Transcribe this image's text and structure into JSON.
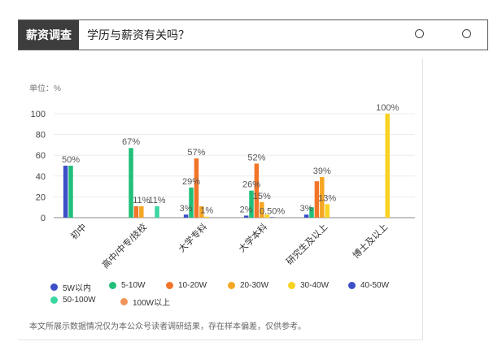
{
  "header": {
    "tag": "薪资调查",
    "title": "学历与薪资有关吗？"
  },
  "unit_label": "单位：%",
  "footnote": "本文所展示数据情况仅为本公众号读者调研结果，存在样本偏差，仅供参考。",
  "chart_data": {
    "type": "bar",
    "categories": [
      "初中",
      "高中/中专/技校",
      "大学专科",
      "大学本科",
      "研究生及以上",
      "博士及以上"
    ],
    "ylim": [
      0,
      100
    ],
    "yticks": [
      0,
      20,
      40,
      60,
      80,
      100
    ],
    "series": [
      {
        "name": "5W以内",
        "color": "#3c4fc7",
        "values": [
          50,
          0,
          3,
          2,
          3,
          0
        ]
      },
      {
        "name": "5-10W",
        "color": "#21c07a",
        "values": [
          50,
          67,
          29,
          26,
          10,
          0
        ]
      },
      {
        "name": "10-20W",
        "color": "#f07528",
        "values": [
          0,
          11,
          57,
          52,
          35,
          0
        ]
      },
      {
        "name": "20-30W",
        "color": "#f5a623",
        "values": [
          0,
          11,
          11,
          15,
          39,
          0
        ]
      },
      {
        "name": "30-40W",
        "color": "#f9d223",
        "values": [
          0,
          0,
          1,
          3,
          13,
          100
        ]
      },
      {
        "name": "40-50W",
        "color": "#3c4fc7",
        "values": [
          0,
          0,
          0,
          0.5,
          0,
          0
        ]
      },
      {
        "name": "50-100W",
        "color": "#3cd7a0",
        "values": [
          0,
          11,
          0,
          0,
          0,
          0
        ]
      },
      {
        "name": "100W以上",
        "color": "#f2935a",
        "values": [
          0,
          0,
          0,
          0,
          0,
          0
        ]
      }
    ],
    "data_labels": [
      {
        "category": 0,
        "series": 1,
        "text": "50%"
      },
      {
        "category": 1,
        "series": 1,
        "text": "67%"
      },
      {
        "category": 1,
        "series": 3,
        "text": "11%"
      },
      {
        "category": 1,
        "series": 6,
        "text": "11%"
      },
      {
        "category": 2,
        "series": 0,
        "text": "3%"
      },
      {
        "category": 2,
        "series": 1,
        "text": "29%"
      },
      {
        "category": 2,
        "series": 2,
        "text": "57%"
      },
      {
        "category": 2,
        "series": 4,
        "text": "1%"
      },
      {
        "category": 3,
        "series": 0,
        "text": "2%"
      },
      {
        "category": 3,
        "series": 1,
        "text": "26%"
      },
      {
        "category": 3,
        "series": 2,
        "text": "52%"
      },
      {
        "category": 3,
        "series": 3,
        "text": "15%"
      },
      {
        "category": 3,
        "series": 5,
        "text": "0.50%"
      },
      {
        "category": 4,
        "series": 0,
        "text": "3%"
      },
      {
        "category": 4,
        "series": 3,
        "text": "39%"
      },
      {
        "category": 4,
        "series": 4,
        "text": "13%"
      },
      {
        "category": 5,
        "series": 4,
        "text": "100%"
      }
    ],
    "grid": true,
    "legend_position": "bottom"
  }
}
